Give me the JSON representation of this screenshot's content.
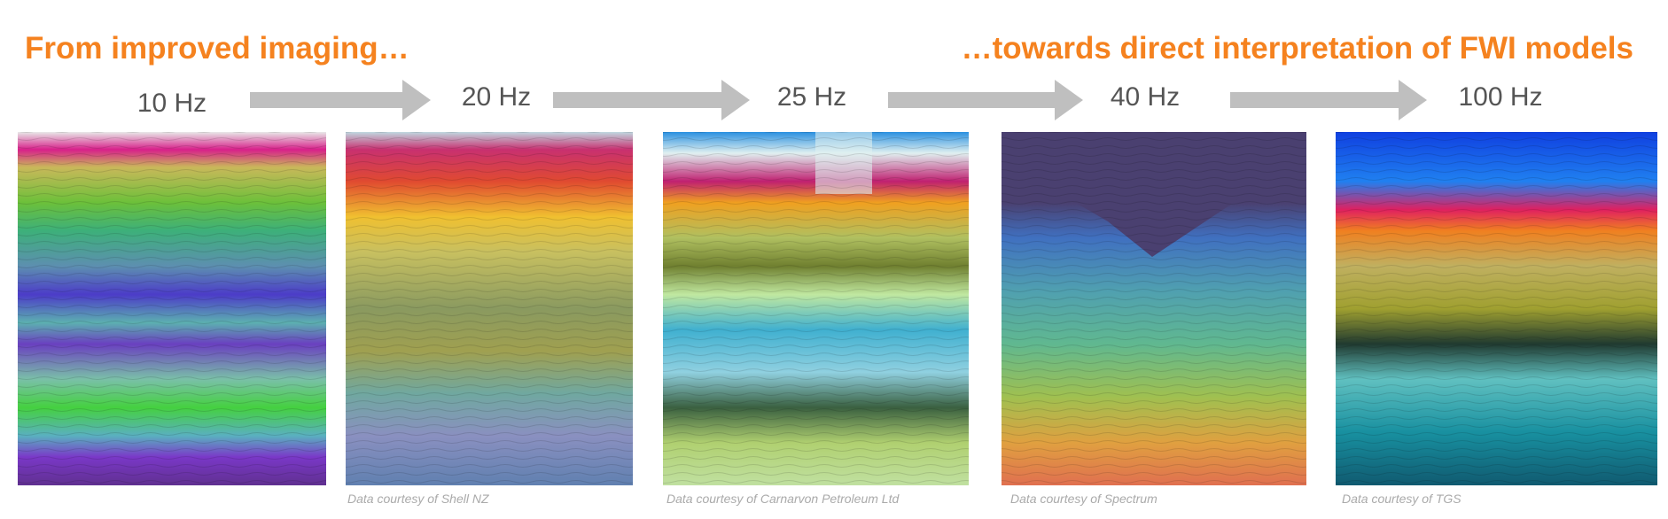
{
  "header": {
    "left": "From improved imaging…",
    "right": "…towards direct interpretation of FWI models"
  },
  "panels": [
    {
      "label": "10 Hz"
    },
    {
      "label": "20 Hz",
      "credit": "Data courtesy of Shell NZ"
    },
    {
      "label": "25 Hz",
      "credit": "Data courtesy of Carnarvon Petroleum Ltd"
    },
    {
      "label": "40 Hz",
      "credit": "Data courtesy of Spectrum"
    },
    {
      "label": "100 Hz",
      "credit": "Data courtesy of TGS"
    }
  ]
}
